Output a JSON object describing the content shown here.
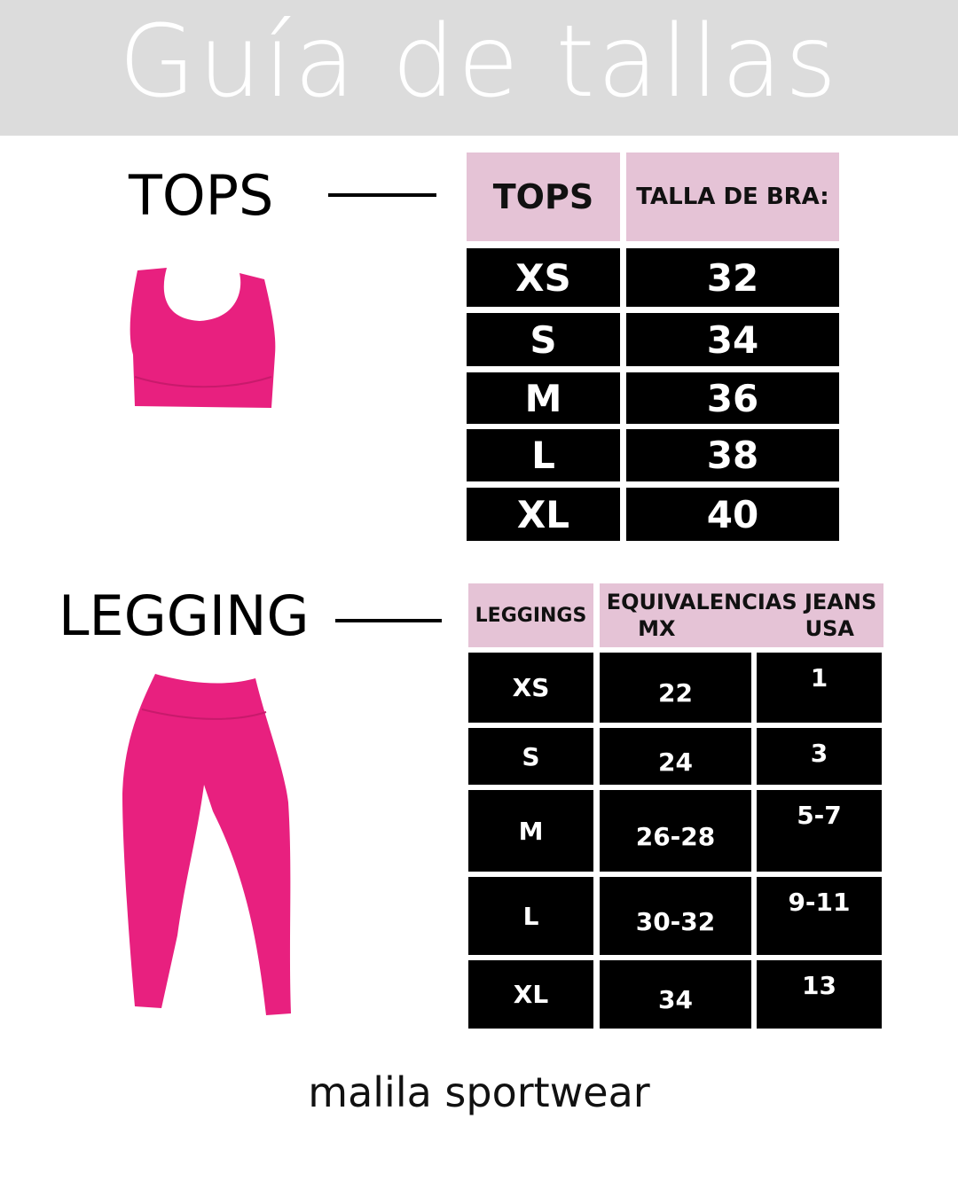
{
  "title": "Guía de tallas",
  "tops": {
    "label": "TOPS",
    "headers": [
      "TOPS",
      "TALLA DE BRA:"
    ],
    "rows": [
      [
        "XS",
        "32"
      ],
      [
        "S",
        "34"
      ],
      [
        "M",
        "36"
      ],
      [
        "L",
        "38"
      ],
      [
        "XL",
        "40"
      ]
    ]
  },
  "leggings": {
    "label": "LEGGING",
    "headers": [
      "LEGGINGS",
      "EQUIVALENCIAS JEANS"
    ],
    "subheaders": [
      "MX",
      "USA"
    ],
    "rows": [
      [
        "XS",
        "22",
        "1"
      ],
      [
        "S",
        "24",
        "3"
      ],
      [
        "M",
        "26-28",
        "5-7"
      ],
      [
        "L",
        "30-32",
        "9-11"
      ],
      [
        "XL",
        "34",
        "13"
      ]
    ]
  },
  "footer": "malila sportwear",
  "colors": {
    "banner": "#dcdcdc",
    "header": "#e5c3d6",
    "cell": "#000000",
    "product": "#e8207f"
  }
}
